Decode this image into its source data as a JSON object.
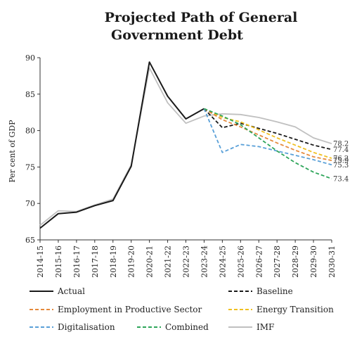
{
  "chart_data": {
    "type": "line",
    "title_lines": [
      "Projected Path of General",
      "Government Debt"
    ],
    "ylabel": "Per cent of GDP",
    "xlabel": "",
    "ylim": [
      65,
      90
    ],
    "yticks": [
      "65",
      "70",
      "75",
      "80",
      "85",
      "90"
    ],
    "categories": [
      "2014-15",
      "2015-16",
      "2016-17",
      "2017-18",
      "2018-19",
      "2019-20",
      "2020-21",
      "2021-22",
      "2022-23",
      "2023-24",
      "2024-25",
      "2025-26",
      "2026-27",
      "2027-28",
      "2028-29",
      "2029-30",
      "2030-31"
    ],
    "grid": false,
    "legend_position": "bottom",
    "series": [
      {
        "name": "Actual",
        "color": "#1a1a1a",
        "dash": "solid",
        "values": [
          66.6,
          68.6,
          68.8,
          69.7,
          70.4,
          75.1,
          89.4,
          84.7,
          81.6,
          83.0,
          null,
          null,
          null,
          null,
          null,
          null,
          null
        ]
      },
      {
        "name": "Baseline",
        "color": "#1a1a1a",
        "dash": "dashed",
        "values": [
          null,
          null,
          null,
          null,
          null,
          null,
          null,
          null,
          null,
          83.0,
          80.4,
          81.0,
          80.3,
          79.6,
          78.8,
          78.0,
          77.4
        ]
      },
      {
        "name": "Employment in Productive Sector",
        "color": "#e58a3c",
        "dash": "dashed",
        "values": [
          null,
          null,
          null,
          null,
          null,
          null,
          null,
          null,
          null,
          83.0,
          81.5,
          80.5,
          79.4,
          78.3,
          77.3,
          76.4,
          75.9
        ]
      },
      {
        "name": "Energy Transition",
        "color": "#f0c020",
        "dash": "dashed",
        "values": [
          null,
          null,
          null,
          null,
          null,
          null,
          null,
          null,
          null,
          83.0,
          81.8,
          81.2,
          80.1,
          79.0,
          78.0,
          77.0,
          76.2
        ]
      },
      {
        "name": "Digitalisation",
        "color": "#5aa0d8",
        "dash": "dashed",
        "values": [
          null,
          null,
          null,
          null,
          null,
          null,
          null,
          null,
          null,
          83.0,
          77.0,
          78.1,
          77.8,
          77.2,
          76.6,
          76.0,
          75.3
        ]
      },
      {
        "name": "Combined",
        "color": "#2ea55a",
        "dash": "dashed",
        "values": [
          null,
          null,
          null,
          null,
          null,
          null,
          null,
          null,
          null,
          83.0,
          82.0,
          80.8,
          79.0,
          77.2,
          75.6,
          74.3,
          73.4
        ]
      },
      {
        "name": "IMF",
        "color": "#c0c0c0",
        "dash": "solid",
        "values": [
          67.0,
          69.0,
          68.9,
          69.8,
          70.6,
          75.3,
          88.6,
          83.8,
          81.0,
          82.0,
          82.3,
          82.2,
          81.8,
          81.2,
          80.5,
          79.0,
          78.2
        ]
      }
    ],
    "end_labels": [
      "78.2",
      "77.4",
      "76.2",
      "75.9",
      "75.3",
      "73.4"
    ]
  }
}
